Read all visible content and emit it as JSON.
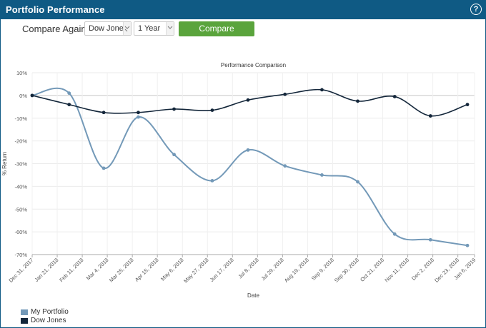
{
  "header": {
    "title": "Portfolio Performance",
    "help_glyph": "?"
  },
  "controls": {
    "compare_label": "Compare Against",
    "index_select": "Dow Jones",
    "period_select": "1 Year",
    "compare_button": "Compare"
  },
  "chart_data": {
    "type": "line",
    "title": "Performance Comparison",
    "xlabel": "Date",
    "ylabel": "% Return",
    "ylim": [
      -70,
      10
    ],
    "y_ticks": [
      "10%",
      "0%",
      "-10%",
      "-20%",
      "-30%",
      "-40%",
      "-50%",
      "-60%",
      "-70%"
    ],
    "x_ticks": [
      "Dec 31, 2017",
      "Jan 21, 2018",
      "Feb 11, 2018",
      "Mar 4, 2018",
      "Mar 25, 2018",
      "Apr 15, 2018",
      "May 6, 2018",
      "May 27, 2018",
      "Jun 17, 2018",
      "Jul 8, 2018",
      "Jul 29, 2018",
      "Aug 19, 2018",
      "Sep 9, 2018",
      "Sep 30, 2018",
      "Oct 21, 2018",
      "Nov 11, 2018",
      "Dec 2, 2018",
      "Dec 23, 2018",
      "Jan 6, 2019"
    ],
    "grid": true,
    "legend_position": "bottom-left",
    "series": [
      {
        "name": "My Portfolio",
        "color": "#7399b8",
        "points": [
          [
            "2017-12-31",
            0
          ],
          [
            "2018-01-31",
            1
          ],
          [
            "2018-03-01",
            -32
          ],
          [
            "2018-03-30",
            -9.5
          ],
          [
            "2018-04-29",
            -26
          ],
          [
            "2018-05-31",
            -37.5
          ],
          [
            "2018-06-30",
            -24
          ],
          [
            "2018-07-31",
            -31
          ],
          [
            "2018-08-31",
            -35
          ],
          [
            "2018-09-30",
            -38
          ],
          [
            "2018-10-31",
            -61
          ],
          [
            "2018-11-30",
            -63.5
          ],
          [
            "2018-12-31",
            -66
          ]
        ]
      },
      {
        "name": "Dow Jones",
        "color": "#13263a",
        "points": [
          [
            "2017-12-31",
            0
          ],
          [
            "2018-01-31",
            -4
          ],
          [
            "2018-03-01",
            -7.5
          ],
          [
            "2018-03-30",
            -7.5
          ],
          [
            "2018-04-29",
            -6
          ],
          [
            "2018-05-31",
            -6.5
          ],
          [
            "2018-06-30",
            -2
          ],
          [
            "2018-07-31",
            0.5
          ],
          [
            "2018-08-31",
            2.5
          ],
          [
            "2018-09-30",
            -2.5
          ],
          [
            "2018-10-31",
            -0.5
          ],
          [
            "2018-11-30",
            -9
          ],
          [
            "2018-12-31",
            -4
          ]
        ]
      }
    ]
  }
}
